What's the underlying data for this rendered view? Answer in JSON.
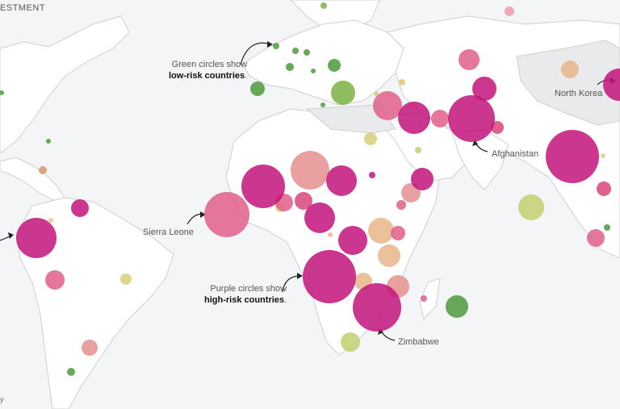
{
  "header_fragment": "ESTMENT",
  "credit_fragment": "y",
  "annotations": {
    "green_line1": "Green circles show",
    "green_line2": "low-risk countries",
    "green_end": ".",
    "purple_line1": "Purple circles show",
    "purple_line2": "high-risk countries",
    "purple_end": "."
  },
  "place_labels": {
    "north_korea": "North Korea",
    "afghanistan": "Afghanistan",
    "sierra_leone": "Sierra Leone",
    "zimbabwe": "Zimbabwe"
  },
  "colors": {
    "ocean": "#f4f5f7",
    "land": "#ffffff",
    "land_shaded": "#e9eaec",
    "border": "#cfcfcf",
    "high_risk": "#c2137a",
    "medium_high": "#e05f8a",
    "medium": "#e58f8f",
    "medium_low": "#e7b68a",
    "low_mid": "#d6cf7a",
    "low_risk": "#4c9a3c"
  },
  "legend_meaning": {
    "low_risk": "green",
    "high_risk": "purple"
  }
}
